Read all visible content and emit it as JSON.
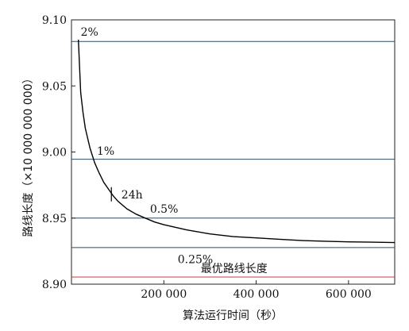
{
  "chart_data": {
    "type": "line",
    "xlabel": "算法运行时间（秒）",
    "ylabel": "路线长度（×10 000 000 000）",
    "xlim": [
      0,
      700000
    ],
    "ylim": [
      8.9,
      9.1
    ],
    "x_ticks": [
      {
        "value": 200000,
        "label": "200 000"
      },
      {
        "value": 400000,
        "label": "400 000"
      },
      {
        "value": 600000,
        "label": "600 000"
      }
    ],
    "y_ticks": [
      {
        "value": 8.9,
        "label": "8.90"
      },
      {
        "value": 8.95,
        "label": "8.95"
      },
      {
        "value": 9.0,
        "label": "9.00"
      },
      {
        "value": 9.05,
        "label": "9.05"
      },
      {
        "value": 9.1,
        "label": "9.10"
      }
    ],
    "grid": false,
    "series": [
      {
        "x": [
          15000,
          20000,
          25000,
          30000,
          40000,
          50000,
          60000,
          70000,
          80000,
          90000,
          100000,
          120000,
          140000,
          160000,
          180000,
          200000,
          250000,
          300000,
          350000,
          400000,
          450000,
          500000,
          550000,
          600000,
          650000,
          700000
        ],
        "y": [
          9.085,
          9.045,
          9.03,
          9.018,
          9.003,
          8.992,
          8.984,
          8.977,
          8.972,
          8.967,
          8.963,
          8.957,
          8.953,
          8.95,
          8.947,
          8.945,
          8.941,
          8.938,
          8.936,
          8.935,
          8.934,
          8.933,
          8.9325,
          8.932,
          8.9318,
          8.9315
        ],
        "color": "#000000"
      }
    ],
    "reference_lines": [
      {
        "y": 9.0836,
        "label": "2%",
        "color": "#2e4b66",
        "label_x": 20000,
        "label_y": 9.088
      },
      {
        "y": 8.9945,
        "label": "1%",
        "color": "#2e4b66",
        "label_x": 55000,
        "label_y": 8.998
      },
      {
        "y": 8.95,
        "label": "0.5%",
        "color": "#2e4b66",
        "label_x": 170000,
        "label_y": 8.954
      },
      {
        "y": 8.9277,
        "label": "0.25%",
        "color": "#2e4b66",
        "label_x": 230000,
        "label_y": 8.916
      },
      {
        "y": 8.9054,
        "label": "最优路线长度",
        "color": "#c43c3c",
        "label_x": 280000,
        "label_y": 8.909
      }
    ],
    "annotations": [
      {
        "text": "24h",
        "x": 86400,
        "y": 8.968,
        "label_x": 108000,
        "label_y": 8.965
      }
    ]
  }
}
